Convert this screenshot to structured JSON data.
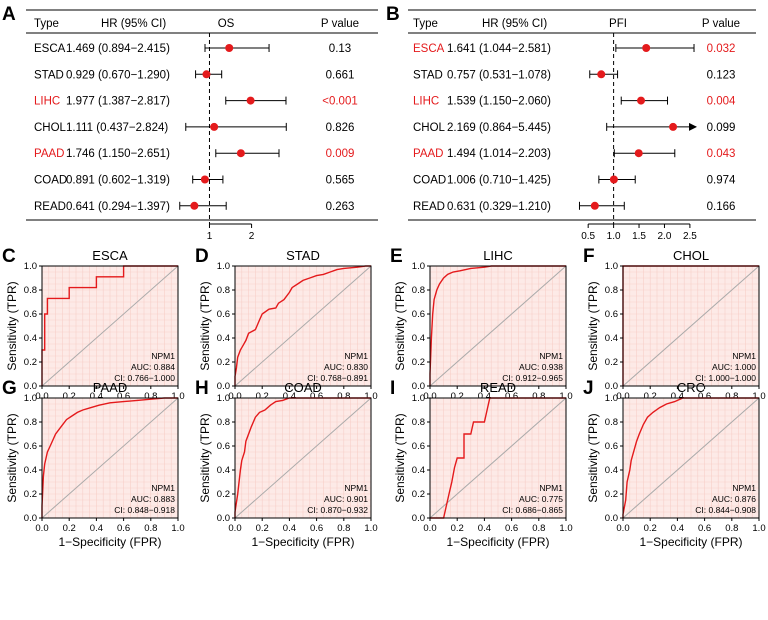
{
  "figure": {
    "forest_plots": [
      {
        "panel": "A",
        "headers": {
          "type": "Type",
          "hr": "HR (95% CI)",
          "metric": "OS",
          "p": "P value"
        },
        "x_ticks": [
          1,
          2
        ],
        "x_tick_labels": [
          "1",
          "2"
        ],
        "x_range": [
          0.3,
          3.15
        ],
        "arrow_right": [],
        "rows": [
          {
            "type": "ESCA",
            "hr_text": "1.469 (0.894−2.415)",
            "hr": 1.469,
            "lo": 0.894,
            "hi": 2.415,
            "p": "0.13",
            "significant": false
          },
          {
            "type": "STAD",
            "hr_text": "0.929 (0.670−1.290)",
            "hr": 0.929,
            "lo": 0.67,
            "hi": 1.29,
            "p": "0.661",
            "significant": false
          },
          {
            "type": "LIHC",
            "hr_text": "1.977 (1.387−2.817)",
            "hr": 1.977,
            "lo": 1.387,
            "hi": 2.817,
            "p": "<0.001",
            "significant": true
          },
          {
            "type": "CHOL",
            "hr_text": "1.111 (0.437−2.824)",
            "hr": 1.111,
            "lo": 0.437,
            "hi": 2.824,
            "p": "0.826",
            "significant": false
          },
          {
            "type": "PAAD",
            "hr_text": "1.746 (1.150−2.651)",
            "hr": 1.746,
            "lo": 1.15,
            "hi": 2.651,
            "p": "0.009",
            "significant": true
          },
          {
            "type": "COAD",
            "hr_text": "0.891 (0.602−1.319)",
            "hr": 0.891,
            "lo": 0.602,
            "hi": 1.319,
            "p": "0.565",
            "significant": false
          },
          {
            "type": "READ",
            "hr_text": "0.641 (0.294−1.397)",
            "hr": 0.641,
            "lo": 0.294,
            "hi": 1.397,
            "p": "0.263",
            "significant": false
          }
        ]
      },
      {
        "panel": "B",
        "headers": {
          "type": "Type",
          "hr": "HR (95% CI)",
          "metric": "PFI",
          "p": "P value"
        },
        "x_ticks": [
          0.5,
          1.0,
          1.5,
          2.0,
          2.5
        ],
        "x_tick_labels": [
          "0.5",
          "1.0",
          "1.5",
          "2.0",
          "2.5"
        ],
        "x_range": [
          0.3,
          2.62
        ],
        "rows": [
          {
            "type": "ESCA",
            "hr_text": "1.641 (1.044−2.581)",
            "hr": 1.641,
            "lo": 1.044,
            "hi": 2.581,
            "p": "0.032",
            "significant": true
          },
          {
            "type": "STAD",
            "hr_text": "0.757 (0.531−1.078)",
            "hr": 0.757,
            "lo": 0.531,
            "hi": 1.078,
            "p": "0.123",
            "significant": false
          },
          {
            "type": "LIHC",
            "hr_text": "1.539 (1.150−2.060)",
            "hr": 1.539,
            "lo": 1.15,
            "hi": 2.06,
            "p": "0.004",
            "significant": true
          },
          {
            "type": "CHOL",
            "hr_text": "2.169 (0.864−5.445)",
            "hr": 2.169,
            "lo": 0.864,
            "hi": 5.445,
            "p": "0.099",
            "significant": false
          },
          {
            "type": "PAAD",
            "hr_text": "1.494 (1.014−2.203)",
            "hr": 1.494,
            "lo": 1.014,
            "hi": 2.203,
            "p": "0.043",
            "significant": true
          },
          {
            "type": "COAD",
            "hr_text": "1.006 (0.710−1.425)",
            "hr": 1.006,
            "lo": 0.71,
            "hi": 1.425,
            "p": "0.974",
            "significant": false
          },
          {
            "type": "READ",
            "hr_text": "0.631 (0.329−1.210)",
            "hr": 0.631,
            "lo": 0.329,
            "hi": 1.21,
            "p": "0.166",
            "significant": false
          }
        ]
      }
    ],
    "roc_common": {
      "xlabel": "1−Specificity (FPR)",
      "ylabel": "Sensitivity (TPR)",
      "ticks": [
        "0.0",
        "0.2",
        "0.4",
        "0.6",
        "0.8",
        "1.0"
      ],
      "gene": "NPM1"
    },
    "roc_plots": [
      {
        "panel": "C",
        "title": "ESCA",
        "auc": "AUC: 0.884",
        "ci": "CI: 0.766−1.000",
        "points": [
          [
            0,
            0
          ],
          [
            0,
            0.3
          ],
          [
            0.02,
            0.3
          ],
          [
            0.02,
            0.6
          ],
          [
            0.04,
            0.6
          ],
          [
            0.04,
            0.73
          ],
          [
            0.2,
            0.73
          ],
          [
            0.2,
            0.82
          ],
          [
            0.4,
            0.82
          ],
          [
            0.4,
            0.91
          ],
          [
            0.6,
            0.91
          ],
          [
            0.6,
            1.0
          ],
          [
            1,
            1
          ]
        ]
      },
      {
        "panel": "D",
        "title": "STAD",
        "auc": "AUC: 0.830",
        "ci": "CI: 0.768−0.891",
        "points": [
          [
            0,
            0
          ],
          [
            0,
            0.08
          ],
          [
            0.01,
            0.15
          ],
          [
            0.02,
            0.24
          ],
          [
            0.04,
            0.3
          ],
          [
            0.06,
            0.34
          ],
          [
            0.08,
            0.38
          ],
          [
            0.1,
            0.44
          ],
          [
            0.15,
            0.47
          ],
          [
            0.18,
            0.55
          ],
          [
            0.2,
            0.6
          ],
          [
            0.25,
            0.64
          ],
          [
            0.3,
            0.65
          ],
          [
            0.32,
            0.69
          ],
          [
            0.36,
            0.72
          ],
          [
            0.4,
            0.78
          ],
          [
            0.42,
            0.82
          ],
          [
            0.46,
            0.85
          ],
          [
            0.5,
            0.88
          ],
          [
            0.55,
            0.9
          ],
          [
            0.6,
            0.92
          ],
          [
            0.65,
            0.93
          ],
          [
            0.7,
            0.95
          ],
          [
            0.75,
            0.97
          ],
          [
            0.8,
            0.98
          ],
          [
            0.9,
            0.99
          ],
          [
            0.96,
            1.0
          ],
          [
            1,
            1
          ]
        ]
      },
      {
        "panel": "E",
        "title": "LIHC",
        "auc": "AUC: 0.938",
        "ci": "CI: 0.912−0.965",
        "points": [
          [
            0,
            0
          ],
          [
            0,
            0.1
          ],
          [
            0.01,
            0.4
          ],
          [
            0.02,
            0.6
          ],
          [
            0.03,
            0.72
          ],
          [
            0.05,
            0.8
          ],
          [
            0.07,
            0.85
          ],
          [
            0.1,
            0.9
          ],
          [
            0.13,
            0.93
          ],
          [
            0.17,
            0.95
          ],
          [
            0.22,
            0.96
          ],
          [
            0.3,
            0.98
          ],
          [
            0.4,
            0.99
          ],
          [
            0.45,
            1.0
          ],
          [
            1,
            1
          ]
        ]
      },
      {
        "panel": "F",
        "title": "CHOL",
        "auc": "AUC: 1.000",
        "ci": "CI: 1.000−1.000",
        "points": [
          [
            0,
            0
          ],
          [
            0,
            1
          ],
          [
            1,
            1
          ]
        ]
      },
      {
        "panel": "G",
        "title": "PAAD",
        "auc": "AUC: 0.883",
        "ci": "CI: 0.848−0.918",
        "points": [
          [
            0,
            0
          ],
          [
            0,
            0.1
          ],
          [
            0.01,
            0.35
          ],
          [
            0.02,
            0.45
          ],
          [
            0.04,
            0.55
          ],
          [
            0.06,
            0.6
          ],
          [
            0.08,
            0.65
          ],
          [
            0.1,
            0.7
          ],
          [
            0.14,
            0.76
          ],
          [
            0.18,
            0.82
          ],
          [
            0.22,
            0.85
          ],
          [
            0.26,
            0.88
          ],
          [
            0.3,
            0.9
          ],
          [
            0.36,
            0.92
          ],
          [
            0.42,
            0.94
          ],
          [
            0.5,
            0.96
          ],
          [
            0.6,
            0.97
          ],
          [
            0.7,
            0.98
          ],
          [
            0.8,
            0.99
          ],
          [
            0.9,
            1.0
          ],
          [
            1,
            1
          ]
        ]
      },
      {
        "panel": "H",
        "title": "COAD",
        "auc": "AUC: 0.901",
        "ci": "CI: 0.870−0.932",
        "points": [
          [
            0,
            0
          ],
          [
            0,
            0.05
          ],
          [
            0.02,
            0.2
          ],
          [
            0.04,
            0.4
          ],
          [
            0.05,
            0.48
          ],
          [
            0.07,
            0.55
          ],
          [
            0.08,
            0.64
          ],
          [
            0.1,
            0.7
          ],
          [
            0.12,
            0.76
          ],
          [
            0.15,
            0.84
          ],
          [
            0.18,
            0.88
          ],
          [
            0.22,
            0.9
          ],
          [
            0.26,
            0.94
          ],
          [
            0.3,
            0.97
          ],
          [
            0.35,
            0.98
          ],
          [
            0.4,
            1.0
          ],
          [
            1,
            1
          ]
        ]
      },
      {
        "panel": "I",
        "title": "READ",
        "auc": "AUC: 0.775",
        "ci": "CI: 0.686−0.865",
        "points": [
          [
            0,
            0
          ],
          [
            0.1,
            0
          ],
          [
            0.12,
            0.1
          ],
          [
            0.14,
            0.2
          ],
          [
            0.16,
            0.3
          ],
          [
            0.18,
            0.42
          ],
          [
            0.2,
            0.5
          ],
          [
            0.25,
            0.5
          ],
          [
            0.25,
            0.7
          ],
          [
            0.3,
            0.7
          ],
          [
            0.32,
            0.8
          ],
          [
            0.4,
            0.8
          ],
          [
            0.42,
            0.9
          ],
          [
            0.44,
            1.0
          ],
          [
            1,
            1
          ]
        ]
      },
      {
        "panel": "J",
        "title": "CRC",
        "auc": "AUC: 0.876",
        "ci": "CI: 0.844−0.908",
        "points": [
          [
            0,
            0
          ],
          [
            0,
            0.03
          ],
          [
            0.02,
            0.15
          ],
          [
            0.03,
            0.3
          ],
          [
            0.05,
            0.4
          ],
          [
            0.06,
            0.48
          ],
          [
            0.08,
            0.56
          ],
          [
            0.1,
            0.64
          ],
          [
            0.12,
            0.7
          ],
          [
            0.15,
            0.78
          ],
          [
            0.18,
            0.84
          ],
          [
            0.22,
            0.88
          ],
          [
            0.27,
            0.92
          ],
          [
            0.32,
            0.95
          ],
          [
            0.38,
            0.97
          ],
          [
            0.44,
            1.0
          ],
          [
            1,
            1
          ]
        ]
      }
    ]
  },
  "chart_data": [
    {
      "type": "scatter",
      "title": "A: Forest plot (OS)",
      "xlabel": "HR",
      "categories": [
        "ESCA",
        "STAD",
        "LIHC",
        "CHOL",
        "PAAD",
        "COAD",
        "READ"
      ],
      "values": [
        1.469,
        0.929,
        1.977,
        1.111,
        1.746,
        0.891,
        0.641
      ]
    },
    {
      "type": "scatter",
      "title": "B: Forest plot (PFI)",
      "xlabel": "HR",
      "categories": [
        "ESCA",
        "STAD",
        "LIHC",
        "CHOL",
        "PAAD",
        "COAD",
        "READ"
      ],
      "values": [
        1.641,
        0.757,
        1.539,
        2.169,
        1.494,
        1.006,
        0.631
      ]
    },
    {
      "type": "line",
      "title": "ROC curves (NPM1)",
      "xlabel": "1−Specificity (FPR)",
      "ylabel": "Sensitivity (TPR)",
      "xlim": [
        0,
        1
      ],
      "ylim": [
        0,
        1
      ],
      "series": [
        {
          "name": "ESCA",
          "auc": 0.884
        },
        {
          "name": "STAD",
          "auc": 0.83
        },
        {
          "name": "LIHC",
          "auc": 0.938
        },
        {
          "name": "CHOL",
          "auc": 1.0
        },
        {
          "name": "PAAD",
          "auc": 0.883
        },
        {
          "name": "COAD",
          "auc": 0.901
        },
        {
          "name": "READ",
          "auc": 0.775
        },
        {
          "name": "CRC",
          "auc": 0.876
        }
      ]
    }
  ]
}
